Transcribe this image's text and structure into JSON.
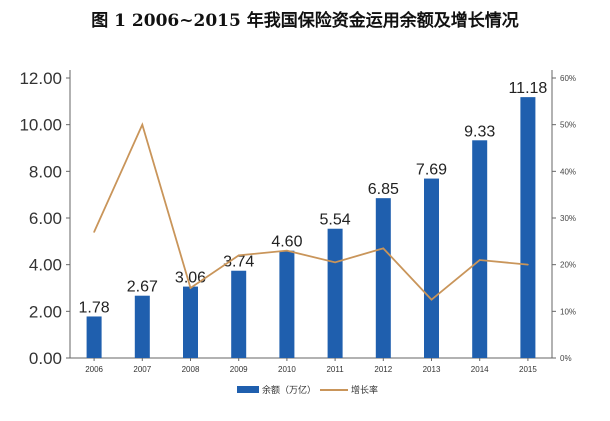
{
  "chart_data": {
    "type": "bar",
    "title": "图 1    2006~2015 年我国保险资金运用余额及增长情况",
    "categories": [
      "2006",
      "2007",
      "2008",
      "2009",
      "2010",
      "2011",
      "2012",
      "2013",
      "2014",
      "2015"
    ],
    "series": [
      {
        "name": "余额（万亿）",
        "type": "bar",
        "axis": "left",
        "values": [
          1.78,
          2.67,
          3.06,
          3.74,
          4.6,
          5.54,
          6.85,
          7.69,
          9.33,
          11.18
        ],
        "value_labels": [
          "1.78",
          "2.67",
          "3.06",
          "3.74",
          "4.60",
          "5.54",
          "6.85",
          "7.69",
          "9.33",
          "11.18"
        ],
        "color": "#1f5fae"
      },
      {
        "name": "增长率",
        "type": "line",
        "axis": "right",
        "values": [
          27,
          50,
          15,
          22,
          23,
          20.5,
          23.5,
          12.5,
          21,
          20
        ],
        "color": "#c9955a"
      }
    ],
    "y_left": {
      "ylim": [
        0,
        12
      ],
      "ticks": [
        "0.00",
        "2.00",
        "4.00",
        "6.00",
        "8.00",
        "10.00",
        "12.00"
      ]
    },
    "y_right": {
      "ylim": [
        0,
        60
      ],
      "ticks": [
        "0%",
        "10%",
        "20%",
        "30%",
        "40%",
        "50%",
        "60%"
      ]
    },
    "grid": false,
    "legend_position": "bottom"
  }
}
